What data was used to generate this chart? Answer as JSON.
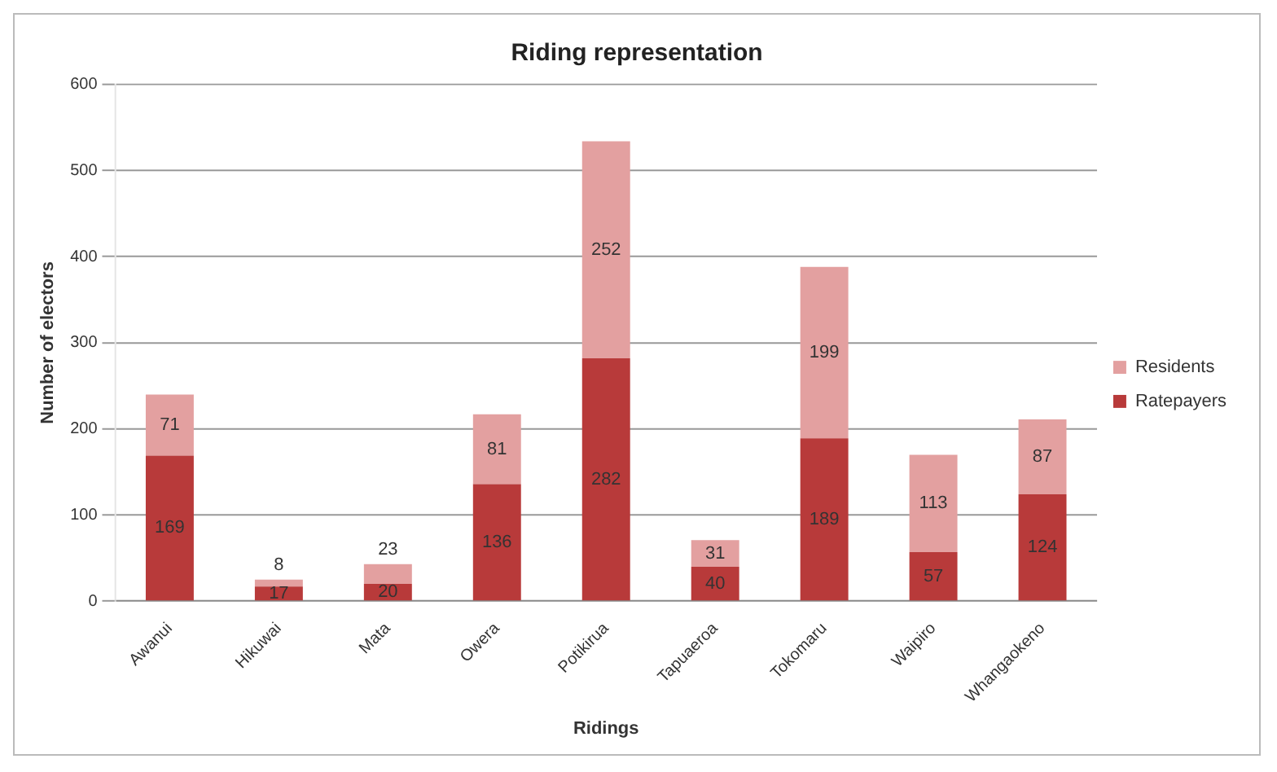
{
  "chart_data": {
    "type": "bar",
    "title": "Riding representation",
    "xlabel": "Ridings",
    "ylabel": "Number of electors",
    "categories": [
      "Awanui",
      "Hikuwai",
      "Mata",
      "Owera",
      "Potikirua",
      "Tapuaeroa",
      "Tokomaru",
      "Waipiro",
      "Whangaokeno"
    ],
    "series": [
      {
        "name": "Ratepayers",
        "color": "#b83a3a",
        "values": [
          169,
          17,
          20,
          136,
          282,
          40,
          189,
          57,
          124
        ]
      },
      {
        "name": "Residents",
        "color": "#e3a0a0",
        "values": [
          71,
          8,
          23,
          81,
          252,
          31,
          199,
          113,
          87
        ]
      }
    ],
    "stacked": true,
    "data_labels": true,
    "ylim": [
      0,
      600
    ],
    "yticks": [
      0,
      100,
      200,
      300,
      400,
      500,
      600
    ],
    "grid": "y",
    "legend": "right"
  }
}
